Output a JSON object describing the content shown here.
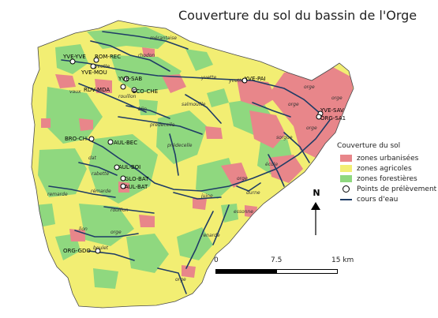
{
  "title": "Couverture du sol du bassin de l'Orge",
  "legend": {
    "title": "Couverture du sol",
    "items": [
      {
        "label": "zones urbanisées",
        "color": "#e8868a",
        "kind": "fill"
      },
      {
        "label": "zones agricoles",
        "color": "#f2ee73",
        "kind": "fill"
      },
      {
        "label": "zones forestières",
        "color": "#8fd87f",
        "kind": "fill"
      },
      {
        "label": "Points de prélèvement",
        "color": "#ffffff",
        "kind": "point"
      },
      {
        "label": "cours d'eau",
        "color": "#1f3c66",
        "kind": "line"
      }
    ]
  },
  "north_label": "N",
  "scale": {
    "labels": [
      "0",
      "7.5",
      "15 km"
    ]
  },
  "stations": [
    {
      "label": "YVE-YVE"
    },
    {
      "label": "YVE-MOU"
    },
    {
      "label": "ROM-REC"
    },
    {
      "label": "RDV-MDA"
    },
    {
      "label": "YVE-SAB"
    },
    {
      "label": "ECO-CHE"
    },
    {
      "label": "YVE-PAI"
    },
    {
      "label": "YVE-SAV"
    },
    {
      "label": "ORG-SA1"
    },
    {
      "label": "BRO-CH"
    },
    {
      "label": "AUL-BEC"
    },
    {
      "label": "AUL-BOI"
    },
    {
      "label": "GLO-BAT"
    },
    {
      "label": "AUL-BAT"
    },
    {
      "label": "ORG-GDO"
    }
  ],
  "rivers": [
    {
      "label": "yvette"
    },
    {
      "label": "yvette"
    },
    {
      "label": "yvette"
    },
    {
      "label": "rhodon"
    },
    {
      "label": "mérantaise"
    },
    {
      "label": "vaux"
    },
    {
      "label": "prédecelle"
    },
    {
      "label": "blin"
    },
    {
      "label": "salmouille"
    },
    {
      "label": "rouillon"
    },
    {
      "label": "orge"
    },
    {
      "label": "orge"
    },
    {
      "label": "orge"
    },
    {
      "label": "orge"
    },
    {
      "label": "dat"
    },
    {
      "label": "rabette"
    },
    {
      "label": "remarde"
    },
    {
      "label": "rémarde"
    },
    {
      "label": "rouillon"
    },
    {
      "label": "orge"
    },
    {
      "label": "boulet"
    },
    {
      "label": "renarde"
    },
    {
      "label": "juine"
    },
    {
      "label": "essonne"
    },
    {
      "label": "école"
    },
    {
      "label": "sorgue"
    },
    {
      "label": "orge"
    },
    {
      "label": "prédecelle"
    },
    {
      "label": "lion"
    },
    {
      "label": "durne"
    },
    {
      "label": "orge"
    }
  ]
}
